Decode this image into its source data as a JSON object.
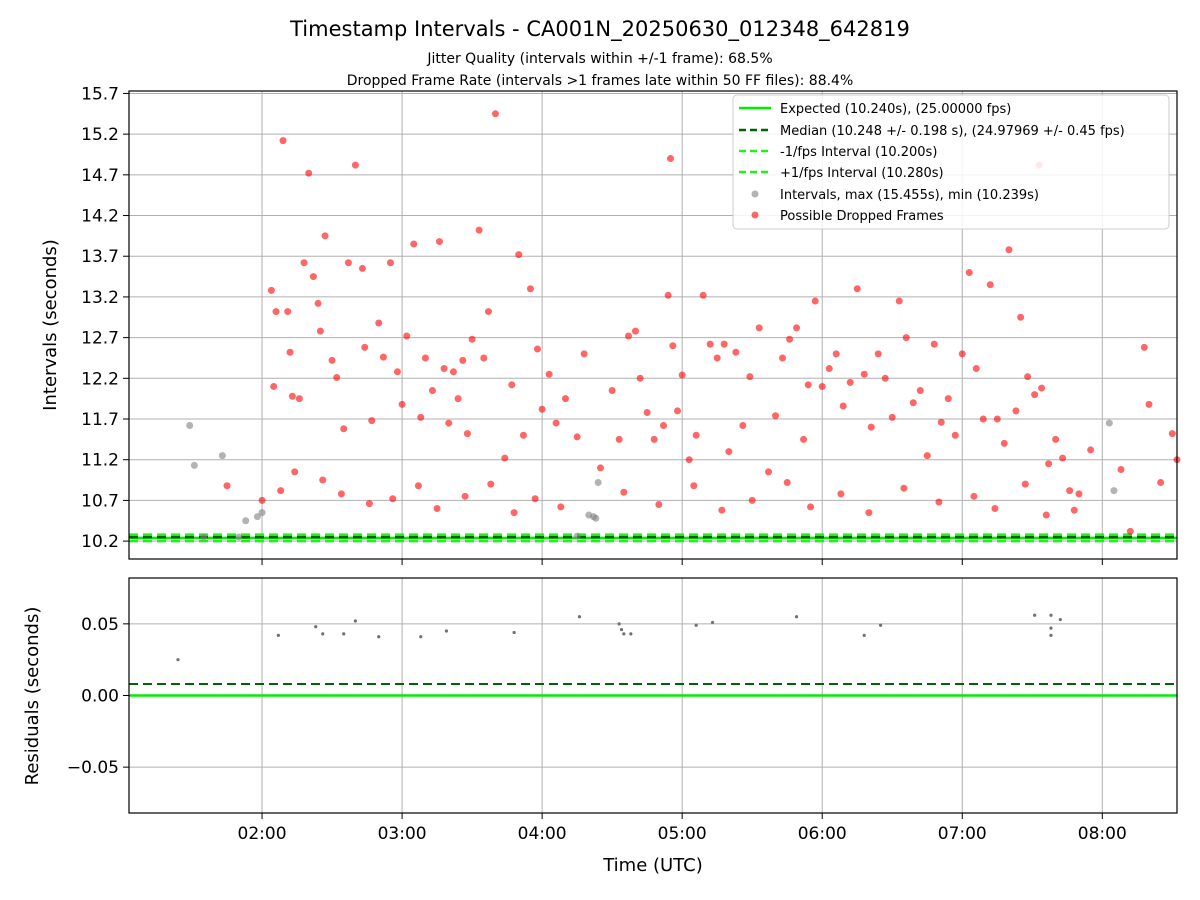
{
  "chart_data": [
    {
      "type": "scatter",
      "title": "Timestamp Intervals - CA001N_20250630_012348_642819",
      "subtitle1": "Jitter Quality (intervals within +/-1 frame): 68.5%",
      "subtitle2": "Dropped Frame Rate (intervals >1 frames late within 50 FF files): 88.4%",
      "xlabel": "",
      "ylabel": "Intervals (seconds)",
      "xlim": [
        "01:03",
        "08:32"
      ],
      "ylim": [
        9.98,
        15.73
      ],
      "yticks": [
        10.2,
        10.7,
        11.2,
        11.7,
        12.2,
        12.7,
        13.2,
        13.7,
        14.2,
        14.7,
        15.2,
        15.7
      ],
      "ytick_labels": [
        "10.2",
        "10.7",
        "11.2",
        "11.7",
        "12.2",
        "12.7",
        "13.2",
        "13.7",
        "14.2",
        "14.7",
        "15.2",
        "15.7"
      ],
      "xticks": [
        "02:00",
        "03:00",
        "04:00",
        "05:00",
        "06:00",
        "07:00",
        "08:00"
      ],
      "grid": true,
      "legend_position": "upper-right",
      "legend": [
        "Expected (10.240s), (25.00000 fps)",
        "Median (10.248 +/- 0.198 s), (24.97969 +/- 0.45 fps)",
        "-1/fps Interval (10.200s)",
        "+1/fps Interval (10.280s)",
        "Intervals, max (15.455s), min (10.239s)",
        "Possible Dropped Frames"
      ],
      "lines": {
        "expected": 10.24,
        "median": 10.248,
        "minus_one_frame": 10.2,
        "plus_one_frame": 10.28
      },
      "colors": {
        "expected": "#00ee00",
        "median": "#006400",
        "interval_lines": "#22ee22",
        "intervals": "#808080",
        "dropped": "#ff0000"
      },
      "series": [
        {
          "name": "Intervals, max (15.455s), min (10.239s)",
          "points": [
            [
              "01:29",
              11.62
            ],
            [
              "01:31",
              11.13
            ],
            [
              "01:43",
              11.25
            ],
            [
              "01:53",
              10.45
            ],
            [
              "01:58",
              10.5
            ],
            [
              "02:00",
              10.55
            ],
            [
              "04:20",
              10.52
            ],
            [
              "04:22",
              10.5
            ],
            [
              "04:24",
              10.92
            ],
            [
              "04:23",
              10.48
            ],
            [
              "08:03",
              11.65
            ],
            [
              "08:05",
              10.82
            ],
            [
              "01:35",
              10.25
            ],
            [
              "01:50",
              10.25
            ],
            [
              "04:15",
              10.26
            ]
          ]
        },
        {
          "name": "Possible Dropped Frames",
          "points": [
            [
              "02:04",
              13.28
            ],
            [
              "02:05",
              12.1
            ],
            [
              "02:06",
              13.02
            ],
            [
              "02:09",
              15.12
            ],
            [
              "02:11",
              13.02
            ],
            [
              "02:12",
              12.52
            ],
            [
              "02:13",
              11.98
            ],
            [
              "02:16",
              11.95
            ],
            [
              "02:18",
              13.62
            ],
            [
              "02:20",
              14.72
            ],
            [
              "02:22",
              13.45
            ],
            [
              "02:24",
              13.12
            ],
            [
              "02:25",
              12.78
            ],
            [
              "02:27",
              13.95
            ],
            [
              "02:30",
              12.42
            ],
            [
              "02:32",
              12.21
            ],
            [
              "02:35",
              11.58
            ],
            [
              "02:37",
              13.62
            ],
            [
              "02:40",
              14.82
            ],
            [
              "02:43",
              13.55
            ],
            [
              "02:44",
              12.58
            ],
            [
              "02:47",
              11.68
            ],
            [
              "02:50",
              12.88
            ],
            [
              "02:52",
              12.46
            ],
            [
              "02:55",
              13.62
            ],
            [
              "02:58",
              12.28
            ],
            [
              "03:00",
              11.88
            ],
            [
              "03:02",
              12.72
            ],
            [
              "03:05",
              13.85
            ],
            [
              "03:08",
              11.72
            ],
            [
              "03:10",
              12.45
            ],
            [
              "03:13",
              12.05
            ],
            [
              "03:16",
              13.88
            ],
            [
              "03:18",
              12.32
            ],
            [
              "03:20",
              11.65
            ],
            [
              "03:22",
              12.28
            ],
            [
              "03:24",
              11.95
            ],
            [
              "03:26",
              12.42
            ],
            [
              "03:28",
              11.52
            ],
            [
              "03:30",
              12.68
            ],
            [
              "03:33",
              14.02
            ],
            [
              "03:35",
              12.45
            ],
            [
              "03:37",
              13.02
            ],
            [
              "03:40",
              15.45
            ],
            [
              "03:44",
              11.22
            ],
            [
              "03:47",
              12.12
            ],
            [
              "03:50",
              13.72
            ],
            [
              "03:52",
              11.5
            ],
            [
              "03:55",
              13.3
            ],
            [
              "03:58",
              12.56
            ],
            [
              "04:00",
              11.82
            ],
            [
              "04:03",
              12.25
            ],
            [
              "04:06",
              11.65
            ],
            [
              "04:10",
              11.95
            ],
            [
              "04:15",
              11.48
            ],
            [
              "04:18",
              12.5
            ],
            [
              "04:25",
              11.1
            ],
            [
              "04:30",
              12.05
            ],
            [
              "04:33",
              11.45
            ],
            [
              "04:37",
              12.72
            ],
            [
              "04:40",
              12.78
            ],
            [
              "04:42",
              12.2
            ],
            [
              "04:45",
              11.78
            ],
            [
              "04:48",
              11.45
            ],
            [
              "04:52",
              11.62
            ],
            [
              "04:54",
              13.22
            ],
            [
              "04:55",
              14.9
            ],
            [
              "04:56",
              12.6
            ],
            [
              "04:58",
              11.8
            ],
            [
              "05:00",
              12.24
            ],
            [
              "05:03",
              11.2
            ],
            [
              "05:06",
              11.5
            ],
            [
              "05:09",
              13.22
            ],
            [
              "05:12",
              12.62
            ],
            [
              "05:15",
              12.45
            ],
            [
              "05:18",
              12.62
            ],
            [
              "05:20",
              11.3
            ],
            [
              "05:23",
              12.52
            ],
            [
              "05:26",
              11.62
            ],
            [
              "05:29",
              12.22
            ],
            [
              "05:33",
              12.82
            ],
            [
              "05:37",
              11.05
            ],
            [
              "05:40",
              11.74
            ],
            [
              "05:43",
              12.45
            ],
            [
              "05:46",
              12.68
            ],
            [
              "05:49",
              12.82
            ],
            [
              "05:52",
              11.45
            ],
            [
              "05:54",
              12.12
            ],
            [
              "05:57",
              13.15
            ],
            [
              "06:00",
              12.1
            ],
            [
              "06:03",
              12.32
            ],
            [
              "06:06",
              12.5
            ],
            [
              "06:09",
              11.86
            ],
            [
              "06:12",
              12.15
            ],
            [
              "06:15",
              13.3
            ],
            [
              "06:18",
              12.25
            ],
            [
              "06:21",
              11.6
            ],
            [
              "06:24",
              12.5
            ],
            [
              "06:27",
              12.2
            ],
            [
              "06:30",
              11.72
            ],
            [
              "06:33",
              13.15
            ],
            [
              "06:36",
              12.7
            ],
            [
              "06:39",
              11.9
            ],
            [
              "06:42",
              12.05
            ],
            [
              "06:45",
              11.25
            ],
            [
              "06:48",
              12.62
            ],
            [
              "06:51",
              11.66
            ],
            [
              "06:54",
              11.95
            ],
            [
              "06:57",
              11.5
            ],
            [
              "07:00",
              12.5
            ],
            [
              "07:03",
              13.5
            ],
            [
              "07:06",
              12.32
            ],
            [
              "07:09",
              11.7
            ],
            [
              "07:12",
              13.35
            ],
            [
              "07:15",
              11.7
            ],
            [
              "07:18",
              11.4
            ],
            [
              "07:20",
              13.78
            ],
            [
              "07:23",
              11.8
            ],
            [
              "07:25",
              12.95
            ],
            [
              "07:28",
              12.22
            ],
            [
              "07:31",
              12.0
            ],
            [
              "07:34",
              12.08
            ],
            [
              "07:37",
              11.15
            ],
            [
              "07:40",
              11.45
            ],
            [
              "07:43",
              11.22
            ],
            [
              "07:46",
              10.82
            ],
            [
              "07:50",
              10.78
            ],
            [
              "07:55",
              11.32
            ],
            [
              "08:08",
              11.08
            ],
            [
              "08:12",
              10.32
            ],
            [
              "08:18",
              12.58
            ],
            [
              "08:20",
              11.88
            ],
            [
              "08:25",
              10.92
            ],
            [
              "08:30",
              11.52
            ],
            [
              "08:32",
              11.2
            ],
            [
              "01:45",
              10.88
            ],
            [
              "02:00",
              10.7
            ],
            [
              "02:08",
              10.82
            ],
            [
              "02:14",
              11.05
            ],
            [
              "02:26",
              10.95
            ],
            [
              "02:34",
              10.78
            ],
            [
              "02:46",
              10.66
            ],
            [
              "02:56",
              10.72
            ],
            [
              "03:07",
              10.88
            ],
            [
              "03:15",
              10.6
            ],
            [
              "03:27",
              10.75
            ],
            [
              "03:38",
              10.9
            ],
            [
              "03:48",
              10.55
            ],
            [
              "03:57",
              10.72
            ],
            [
              "04:08",
              10.62
            ],
            [
              "04:35",
              10.8
            ],
            [
              "04:50",
              10.65
            ],
            [
              "05:05",
              10.88
            ],
            [
              "05:17",
              10.58
            ],
            [
              "05:30",
              10.7
            ],
            [
              "05:45",
              10.92
            ],
            [
              "05:55",
              10.62
            ],
            [
              "06:08",
              10.78
            ],
            [
              "06:20",
              10.55
            ],
            [
              "06:35",
              10.85
            ],
            [
              "06:50",
              10.68
            ],
            [
              "07:05",
              10.75
            ],
            [
              "07:14",
              10.6
            ],
            [
              "07:27",
              10.9
            ],
            [
              "07:36",
              10.52
            ],
            [
              "07:48",
              10.58
            ],
            [
              "07:33",
              14.82
            ]
          ]
        }
      ]
    },
    {
      "type": "scatter",
      "title": "",
      "xlabel": "Time (UTC)",
      "ylabel": "Residuals (seconds)",
      "xlim": [
        "01:03",
        "08:32"
      ],
      "ylim": [
        -0.082,
        0.082
      ],
      "yticks": [
        -0.05,
        0.0,
        0.05
      ],
      "ytick_labels": [
        "−0.05",
        "0.00",
        "0.05"
      ],
      "xticks": [
        "02:00",
        "03:00",
        "04:00",
        "05:00",
        "06:00",
        "07:00",
        "08:00"
      ],
      "grid": true,
      "lines": {
        "zero": 0.0,
        "median_residual": 0.008
      },
      "series": [
        {
          "name": "",
          "points": [
            [
              "01:24",
              0.025
            ],
            [
              "02:07",
              0.042
            ],
            [
              "02:23",
              0.048
            ],
            [
              "02:26",
              0.043
            ],
            [
              "02:35",
              0.043
            ],
            [
              "02:40",
              0.052
            ],
            [
              "02:50",
              0.041
            ],
            [
              "03:08",
              0.041
            ],
            [
              "03:19",
              0.045
            ],
            [
              "03:48",
              0.044
            ],
            [
              "04:16",
              0.055
            ],
            [
              "04:33",
              0.05
            ],
            [
              "04:34",
              0.046
            ],
            [
              "04:35",
              0.043
            ],
            [
              "04:38",
              0.043
            ],
            [
              "05:06",
              0.049
            ],
            [
              "05:13",
              0.051
            ],
            [
              "05:49",
              0.055
            ],
            [
              "06:18",
              0.042
            ],
            [
              "06:25",
              0.049
            ],
            [
              "07:31",
              0.056
            ],
            [
              "07:38",
              0.056
            ],
            [
              "07:38",
              0.047
            ],
            [
              "07:38",
              0.042
            ],
            [
              "07:42",
              0.053
            ]
          ]
        }
      ]
    }
  ]
}
